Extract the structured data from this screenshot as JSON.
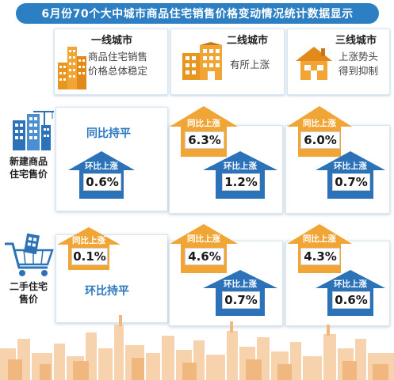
{
  "title": "6月份70个大中城市商品住宅销售价格变动情况统计数据显示",
  "columns": [
    {
      "title": "一线城市",
      "desc_lines": [
        "商品住宅销售",
        "价格总体稳定"
      ]
    },
    {
      "title": "二线城市",
      "desc_lines": [
        "有所上涨"
      ]
    },
    {
      "title": "三线城市",
      "desc_lines": [
        "上涨势头",
        "得到抑制"
      ]
    }
  ],
  "rows": [
    {
      "label_lines": [
        "新建商品",
        "住宅售价"
      ]
    },
    {
      "label_lines": [
        "二手住宅",
        "售价"
      ]
    }
  ],
  "cells": {
    "new_tier1": {
      "yoy_flat": "同比持平",
      "mom_label": "环比上涨",
      "mom_value": "0.6%"
    },
    "new_tier2": {
      "yoy_label": "同比上涨",
      "yoy_value": "6.3%",
      "mom_label": "环比上涨",
      "mom_value": "1.2%"
    },
    "new_tier3": {
      "yoy_label": "同比上涨",
      "yoy_value": "6.0%",
      "mom_label": "环比上涨",
      "mom_value": "0.7%"
    },
    "used_tier1": {
      "yoy_label": "同比上涨",
      "yoy_value": "0.1%",
      "mom_flat": "环比持平"
    },
    "used_tier2": {
      "yoy_label": "同比上涨",
      "yoy_value": "4.6%",
      "mom_label": "环比上涨",
      "mom_value": "0.7%"
    },
    "used_tier3": {
      "yoy_label": "同比上涨",
      "yoy_value": "4.3%",
      "mom_label": "环比上涨",
      "mom_value": "0.6%"
    }
  },
  "colors": {
    "yoy_arrow": "#f0a535",
    "mom_arrow": "#2b72b8",
    "title_bar": "#2b7fc2",
    "skyline": "#f3c79a"
  },
  "icons": [
    "office-buildings-icon",
    "apartment-icon",
    "house-icon",
    "tower-crane-icon",
    "shopping-cart-icon",
    "city-skyline-icon"
  ]
}
